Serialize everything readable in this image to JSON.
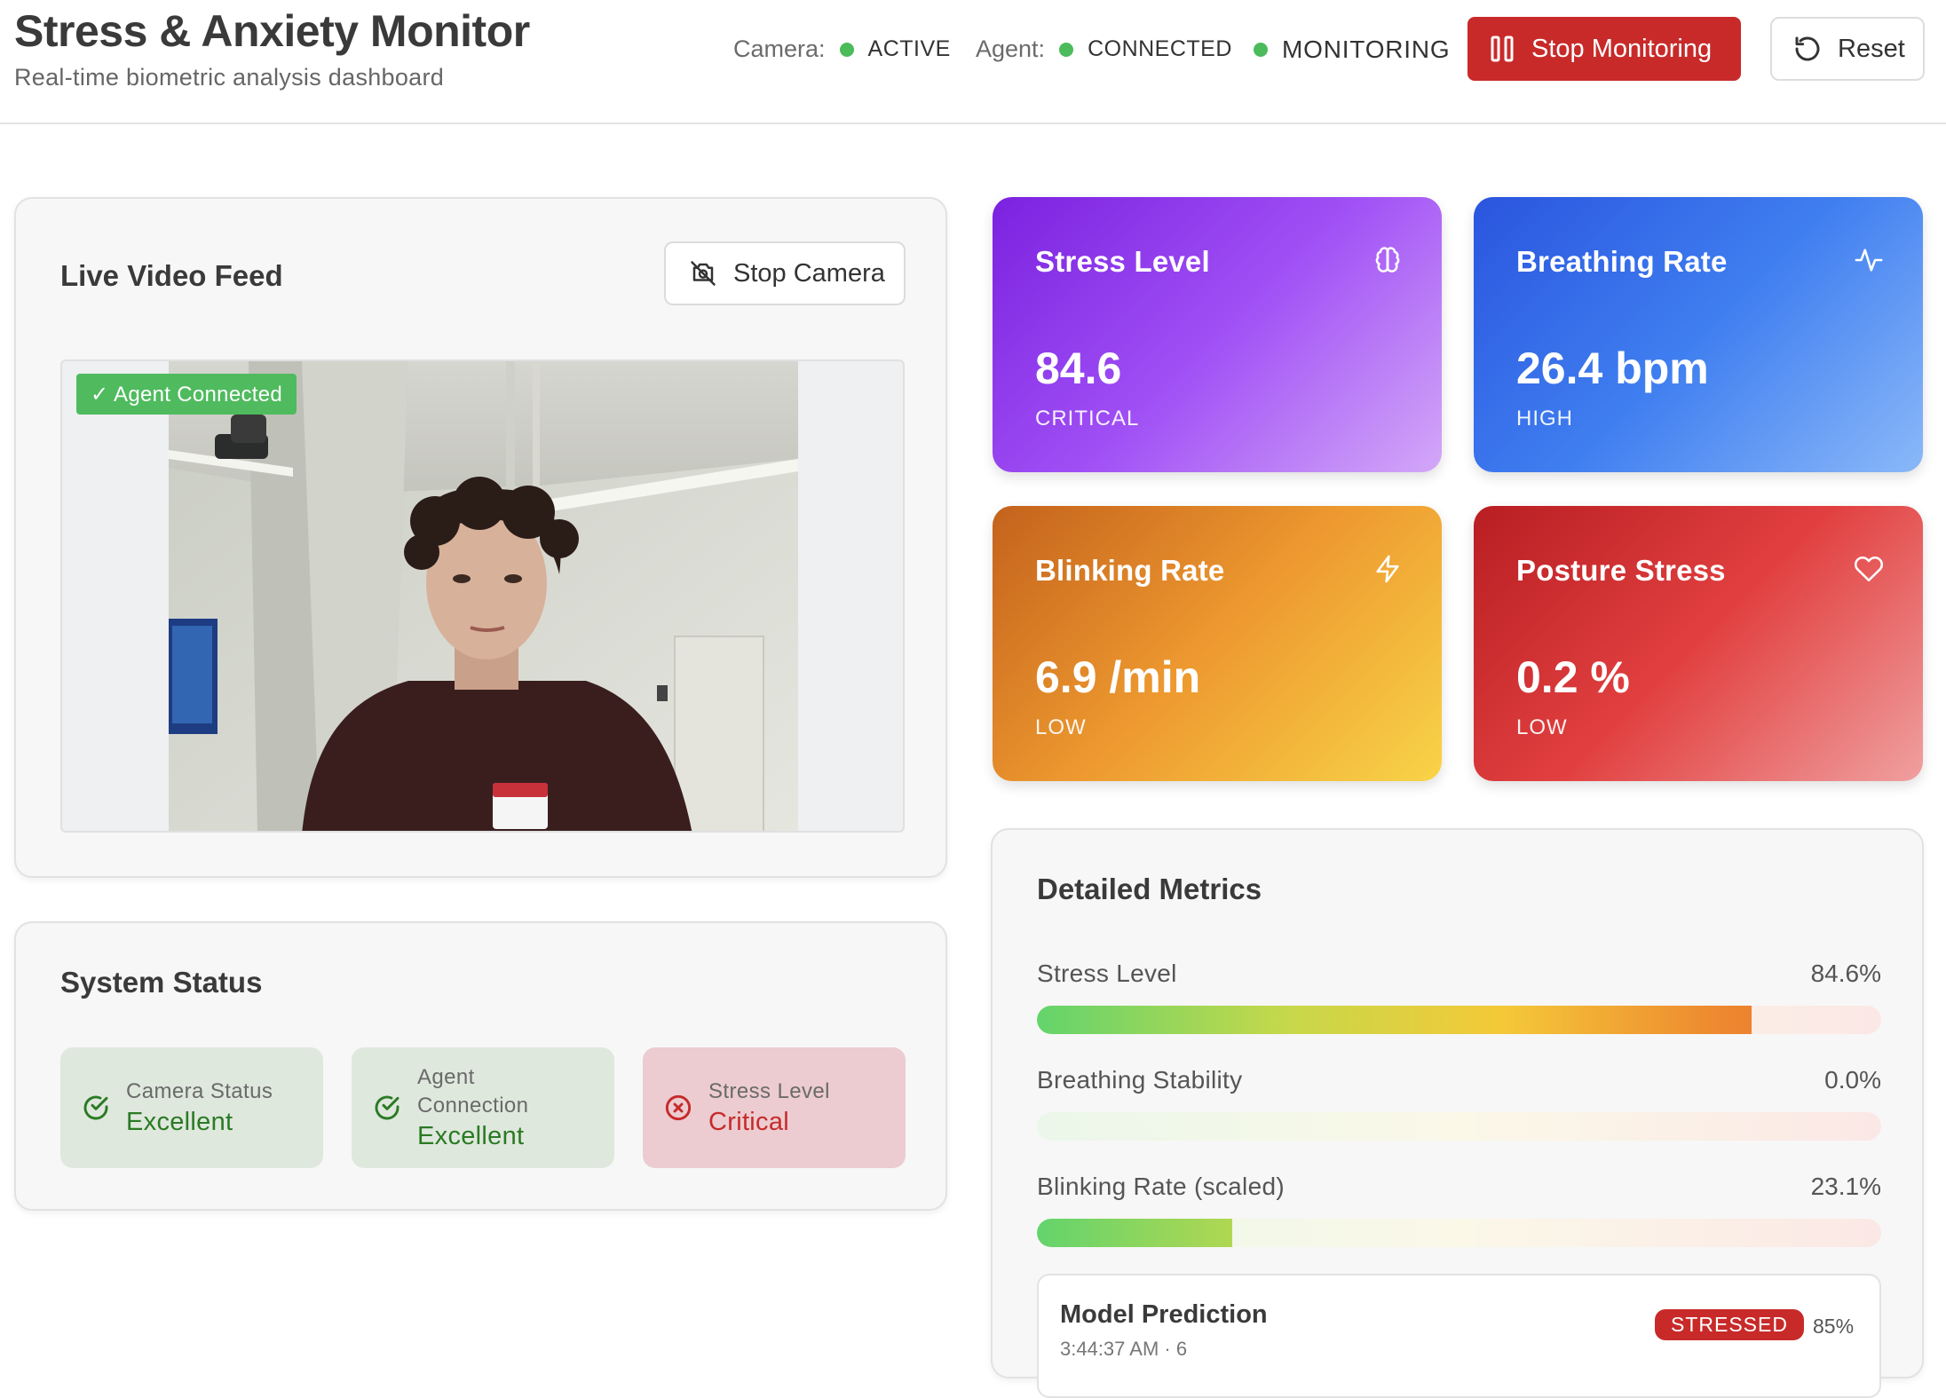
{
  "header": {
    "title": "Stress & Anxiety Monitor",
    "subtitle": "Real-time biometric analysis dashboard",
    "camera_label": "Camera:",
    "camera_value": "ACTIVE",
    "agent_label": "Agent:",
    "agent_value": "CONNECTED",
    "monitoring_value": "MONITORING",
    "stop_monitoring_label": "Stop Monitoring",
    "reset_label": "Reset",
    "status_color": "#4cbb5a"
  },
  "video": {
    "title": "Live Video Feed",
    "stop_camera_label": "Stop Camera",
    "agent_badge": "✓ Agent Connected"
  },
  "system_status": {
    "title": "System Status",
    "cards": [
      {
        "label": "Camera Status",
        "value": "Excellent",
        "state": "ok",
        "icon": "check-circle-icon"
      },
      {
        "label": "Agent Connection",
        "value": "Excellent",
        "state": "ok",
        "icon": "check-circle-icon"
      },
      {
        "label": "Stress Level",
        "value": "Critical",
        "state": "bad",
        "icon": "x-circle-icon"
      }
    ]
  },
  "metric_cards": [
    {
      "title": "Stress Level",
      "value": "84.6",
      "level": "CRITICAL",
      "icon": "brain-icon"
    },
    {
      "title": "Breathing Rate",
      "value": "26.4 bpm",
      "level": "HIGH",
      "icon": "activity-icon"
    },
    {
      "title": "Blinking Rate",
      "value": "6.9 /min",
      "level": "LOW",
      "icon": "lightning-icon"
    },
    {
      "title": "Posture Stress",
      "value": "0.2 %",
      "level": "LOW",
      "icon": "heart-icon"
    }
  ],
  "detailed_metrics": {
    "title": "Detailed Metrics",
    "rows": [
      {
        "label": "Stress Level",
        "value": "84.6%",
        "fill": 0.846
      },
      {
        "label": "Breathing Stability",
        "value": "0.0%",
        "fill": 0.0
      },
      {
        "label": "Blinking Rate (scaled)",
        "value": "23.1%",
        "fill": 0.231
      }
    ],
    "prediction": {
      "title": "Model Prediction",
      "time": "3:44:37 AM · 6",
      "badge": "STRESSED",
      "confidence": "85%"
    }
  },
  "colors": {
    "danger": "#c82a2a",
    "success": "#2a7a24",
    "stress_card": "#8b30ea",
    "breathing_card": "#2f63e4",
    "blinking_card": "#ee9a30",
    "posture_card": "#d42e30"
  }
}
